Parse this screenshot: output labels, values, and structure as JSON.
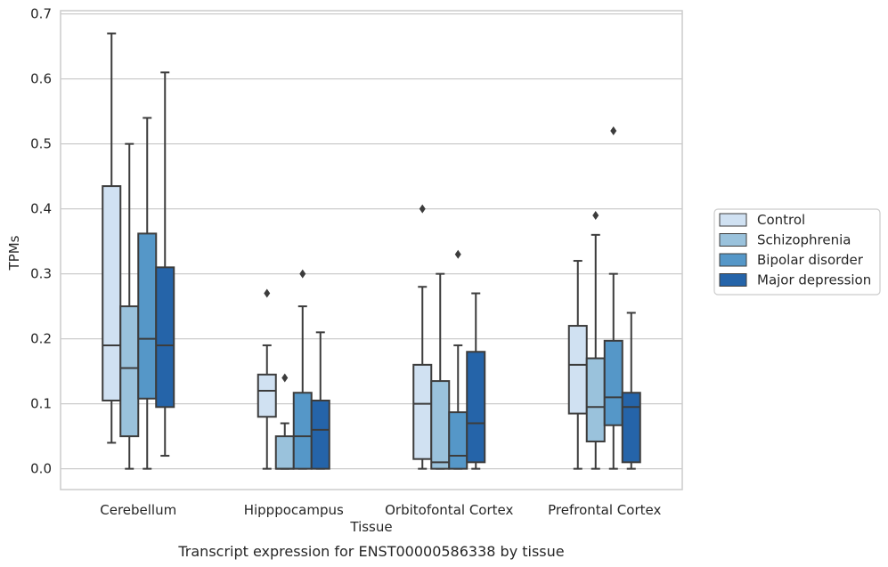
{
  "caption": "Transcript expression for ENST00000586338 by tissue",
  "chart_data": {
    "type": "box",
    "xlabel": "Tissue",
    "ylabel": "TPMs",
    "ylim": [
      -0.032,
      0.705
    ],
    "yticks": [
      "0.0",
      "0.1",
      "0.2",
      "0.3",
      "0.4",
      "0.5",
      "0.6",
      "0.7"
    ],
    "ytick_values": [
      0,
      0.1,
      0.2,
      0.3,
      0.4,
      0.5,
      0.6,
      0.7
    ],
    "grid": "horizontal",
    "legend_position": "right",
    "categories": [
      "Cerebellum",
      "Hipppocampus",
      "Orbitofontal Cortex",
      "Prefrontal Cortex"
    ],
    "series": [
      {
        "name": "Control",
        "color": "#d0e1f2",
        "boxes": [
          {
            "whislo": 0.04,
            "q1": 0.105,
            "med": 0.19,
            "q3": 0.435,
            "whishi": 0.67,
            "fliers": []
          },
          {
            "whislo": 0.0,
            "q1": 0.08,
            "med": 0.12,
            "q3": 0.145,
            "whishi": 0.19,
            "fliers": [
              0.27
            ]
          },
          {
            "whislo": 0.0,
            "q1": 0.015,
            "med": 0.1,
            "q3": 0.16,
            "whishi": 0.28,
            "fliers": [
              0.4
            ]
          },
          {
            "whislo": 0.0,
            "q1": 0.085,
            "med": 0.16,
            "q3": 0.22,
            "whishi": 0.32,
            "fliers": []
          }
        ]
      },
      {
        "name": "Schizophrenia",
        "color": "#9ac2dc",
        "boxes": [
          {
            "whislo": 0.0,
            "q1": 0.05,
            "med": 0.155,
            "q3": 0.25,
            "whishi": 0.5,
            "fliers": []
          },
          {
            "whislo": 0.0,
            "q1": 0.0,
            "med": 0.0,
            "q3": 0.05,
            "whishi": 0.07,
            "fliers": [
              0.14
            ]
          },
          {
            "whislo": 0.0,
            "q1": 0.0,
            "med": 0.01,
            "q3": 0.135,
            "whishi": 0.3,
            "fliers": []
          },
          {
            "whislo": 0.0,
            "q1": 0.042,
            "med": 0.095,
            "q3": 0.17,
            "whishi": 0.36,
            "fliers": [
              0.39
            ]
          }
        ]
      },
      {
        "name": "Bipolar disorder",
        "color": "#5597c8",
        "boxes": [
          {
            "whislo": 0.0,
            "q1": 0.108,
            "med": 0.2,
            "q3": 0.362,
            "whishi": 0.54,
            "fliers": []
          },
          {
            "whislo": 0.0,
            "q1": 0.0,
            "med": 0.05,
            "q3": 0.117,
            "whishi": 0.25,
            "fliers": [
              0.3
            ]
          },
          {
            "whislo": 0.0,
            "q1": 0.0,
            "med": 0.02,
            "q3": 0.087,
            "whishi": 0.19,
            "fliers": [
              0.33
            ]
          },
          {
            "whislo": 0.0,
            "q1": 0.067,
            "med": 0.11,
            "q3": 0.197,
            "whishi": 0.3,
            "fliers": [
              0.52
            ]
          }
        ]
      },
      {
        "name": "Major depression",
        "color": "#2564a9",
        "boxes": [
          {
            "whislo": 0.02,
            "q1": 0.095,
            "med": 0.19,
            "q3": 0.31,
            "whishi": 0.61,
            "fliers": []
          },
          {
            "whislo": 0.0,
            "q1": 0.0,
            "med": 0.06,
            "q3": 0.105,
            "whishi": 0.21,
            "fliers": []
          },
          {
            "whislo": 0.0,
            "q1": 0.01,
            "med": 0.07,
            "q3": 0.18,
            "whishi": 0.27,
            "fliers": []
          },
          {
            "whislo": 0.0,
            "q1": 0.01,
            "med": 0.095,
            "q3": 0.117,
            "whishi": 0.24,
            "fliers": []
          }
        ]
      }
    ]
  }
}
